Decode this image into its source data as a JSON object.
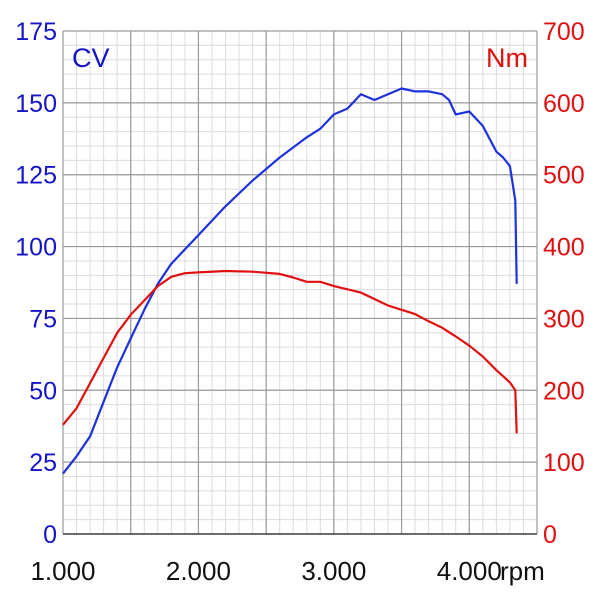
{
  "chart_data": {
    "type": "line",
    "xlabel": "rpm",
    "ylabel_left": "CV",
    "ylabel_right": "Nm",
    "x_ticks": [
      "1.000",
      "2.000",
      "3.000",
      "4.000"
    ],
    "x_tick_values": [
      1000,
      2000,
      3000,
      4000
    ],
    "xlim": [
      1000,
      4500
    ],
    "ylim_left": [
      0,
      175
    ],
    "ylim_right": [
      0,
      700
    ],
    "y_ticks_left": [
      "0",
      "25",
      "50",
      "75",
      "100",
      "125",
      "150",
      "175"
    ],
    "y_ticks_right": [
      "0",
      "100",
      "200",
      "300",
      "400",
      "500",
      "600",
      "700"
    ],
    "grid": true,
    "series": [
      {
        "name": "CV",
        "axis": "left",
        "color": "#1e32dc",
        "points": [
          [
            1000,
            21
          ],
          [
            1100,
            27
          ],
          [
            1200,
            34
          ],
          [
            1300,
            46
          ],
          [
            1400,
            58
          ],
          [
            1500,
            68
          ],
          [
            1600,
            78
          ],
          [
            1700,
            87
          ],
          [
            1800,
            94
          ],
          [
            1900,
            99
          ],
          [
            2000,
            104
          ],
          [
            2200,
            114
          ],
          [
            2400,
            123
          ],
          [
            2600,
            131
          ],
          [
            2800,
            138
          ],
          [
            2900,
            141
          ],
          [
            3000,
            146
          ],
          [
            3100,
            148
          ],
          [
            3200,
            153
          ],
          [
            3300,
            151
          ],
          [
            3400,
            153
          ],
          [
            3500,
            155
          ],
          [
            3600,
            154
          ],
          [
            3700,
            154
          ],
          [
            3800,
            153
          ],
          [
            3850,
            151
          ],
          [
            3900,
            146
          ],
          [
            4000,
            147
          ],
          [
            4100,
            142
          ],
          [
            4200,
            133
          ],
          [
            4250,
            131
          ],
          [
            4300,
            128
          ],
          [
            4340,
            116
          ],
          [
            4350,
            87
          ]
        ]
      },
      {
        "name": "Nm",
        "axis": "right",
        "color": "#e01010",
        "points": [
          [
            1000,
            152
          ],
          [
            1100,
            175
          ],
          [
            1200,
            210
          ],
          [
            1300,
            245
          ],
          [
            1400,
            280
          ],
          [
            1500,
            305
          ],
          [
            1600,
            325
          ],
          [
            1700,
            345
          ],
          [
            1800,
            358
          ],
          [
            1900,
            363
          ],
          [
            2000,
            364
          ],
          [
            2200,
            366
          ],
          [
            2400,
            365
          ],
          [
            2600,
            362
          ],
          [
            2700,
            357
          ],
          [
            2800,
            351
          ],
          [
            2900,
            351
          ],
          [
            3000,
            345
          ],
          [
            3200,
            336
          ],
          [
            3400,
            318
          ],
          [
            3500,
            312
          ],
          [
            3600,
            306
          ],
          [
            3700,
            296
          ],
          [
            3800,
            287
          ],
          [
            3900,
            275
          ],
          [
            4000,
            262
          ],
          [
            4100,
            247
          ],
          [
            4200,
            228
          ],
          [
            4300,
            211
          ],
          [
            4340,
            200
          ],
          [
            4350,
            140
          ]
        ]
      }
    ]
  }
}
